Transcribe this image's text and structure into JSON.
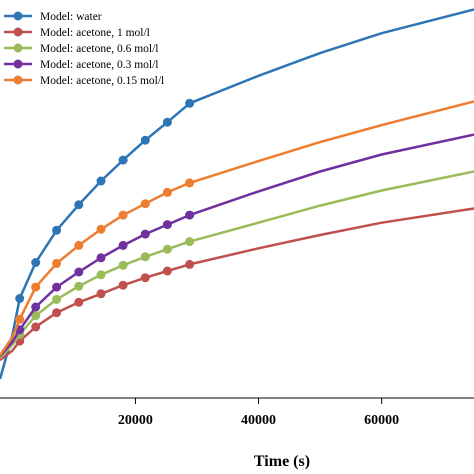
{
  "chart_data": {
    "type": "line",
    "xlabel": "Time (s)",
    "ylabel": "",
    "xlim": [
      -2000,
      75000
    ],
    "ylim": [
      0,
      420
    ],
    "x_ticks": [
      20000,
      40000,
      60000
    ],
    "x_tick_labels": [
      "20000",
      "40000",
      "60000"
    ],
    "grid": false,
    "legend_position": "top-left",
    "series": [
      {
        "name": "Model: water",
        "color": "#2E75B6",
        "markers": {
          "x": [
            1200,
            3800,
            7200,
            10800,
            14400,
            18000,
            21600,
            25200,
            28800
          ],
          "y": [
            105,
            143,
            177,
            204,
            229,
            251,
            272,
            291,
            311
          ]
        },
        "line": {
          "x": [
            -2000,
            0,
            1200,
            3800,
            7200,
            10800,
            14400,
            18000,
            21600,
            25200,
            28800,
            40000,
            50000,
            60000,
            75000
          ],
          "y": [
            20,
            66,
            105,
            143,
            177,
            204,
            229,
            251,
            272,
            291,
            311,
            340,
            364,
            385,
            410
          ]
        }
      },
      {
        "name": "Model: acetone, 1 mol/l",
        "color": "#C0504D",
        "markers": {
          "x": [
            1200,
            3800,
            7200,
            10800,
            14400,
            18000,
            21600,
            25200,
            28800
          ],
          "y": [
            60,
            75,
            90,
            101,
            110,
            119,
            127,
            134,
            141
          ]
        },
        "line": {
          "x": [
            -2000,
            0,
            1200,
            3800,
            7200,
            10800,
            14400,
            18000,
            21600,
            25200,
            28800,
            40000,
            50000,
            60000,
            75000
          ],
          "y": [
            40,
            50,
            60,
            75,
            90,
            101,
            110,
            119,
            127,
            134,
            141,
            158,
            172,
            185,
            200
          ]
        }
      },
      {
        "name": "Model: acetone, 0.6 mol/l",
        "color": "#9BBB59",
        "markers": {
          "x": [
            1200,
            3800,
            7200,
            10800,
            14400,
            18000,
            21600,
            25200,
            28800
          ],
          "y": [
            67,
            87,
            104,
            118,
            130,
            140,
            149,
            157,
            165
          ]
        },
        "line": {
          "x": [
            -2000,
            0,
            1200,
            3800,
            7200,
            10800,
            14400,
            18000,
            21600,
            25200,
            28800,
            40000,
            50000,
            60000,
            75000
          ],
          "y": [
            42,
            56,
            67,
            87,
            104,
            118,
            130,
            140,
            149,
            157,
            165,
            185,
            203,
            219,
            239
          ]
        }
      },
      {
        "name": "Model: acetone, 0.3 mol/l",
        "color": "#7030A0",
        "markers": {
          "x": [
            1200,
            3800,
            7200,
            10800,
            14400,
            18000,
            21600,
            25200,
            28800
          ],
          "y": [
            72,
            96,
            117,
            133,
            148,
            161,
            173,
            183,
            193
          ]
        },
        "line": {
          "x": [
            -2000,
            0,
            1200,
            3800,
            7200,
            10800,
            14400,
            18000,
            21600,
            25200,
            28800,
            40000,
            50000,
            60000,
            75000
          ],
          "y": [
            44,
            59,
            72,
            96,
            117,
            133,
            148,
            161,
            173,
            183,
            193,
            218,
            239,
            257,
            278
          ]
        }
      },
      {
        "name": "Model: acetone, 0.15 mol/l",
        "color": "#ED7D31",
        "markers": {
          "x": [
            1200,
            3800,
            7200,
            10800,
            14400,
            18000,
            21600,
            25200,
            28800
          ],
          "y": [
            83,
            117,
            142,
            161,
            178,
            193,
            205,
            217,
            227
          ]
        },
        "line": {
          "x": [
            -2000,
            0,
            1200,
            3800,
            7200,
            10800,
            14400,
            18000,
            21600,
            25200,
            28800,
            40000,
            50000,
            60000,
            75000
          ],
          "y": [
            45,
            64,
            83,
            117,
            142,
            161,
            178,
            193,
            205,
            217,
            227,
            250,
            270,
            288,
            313
          ]
        }
      }
    ]
  }
}
